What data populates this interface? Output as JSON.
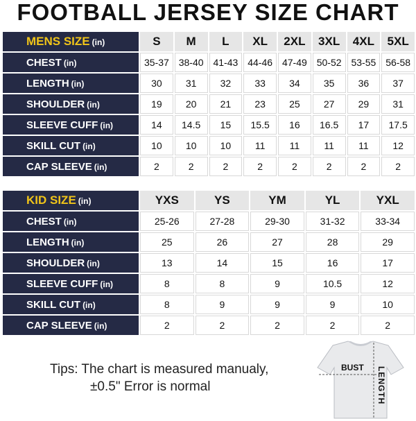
{
  "title": "FOOTBALL JERSEY SIZE CHART",
  "mens": {
    "label": "MENS SIZE",
    "unit": "(in)",
    "sizes": [
      "S",
      "M",
      "L",
      "XL",
      "2XL",
      "3XL",
      "4XL",
      "5XL"
    ],
    "rows": [
      {
        "label": "CHEST",
        "unit": "(in)",
        "values": [
          "35-37",
          "38-40",
          "41-43",
          "44-46",
          "47-49",
          "50-52",
          "53-55",
          "56-58"
        ]
      },
      {
        "label": "LENGTH",
        "unit": "(in)",
        "values": [
          "30",
          "31",
          "32",
          "33",
          "34",
          "35",
          "36",
          "37"
        ]
      },
      {
        "label": "SHOULDER",
        "unit": "(in)",
        "values": [
          "19",
          "20",
          "21",
          "23",
          "25",
          "27",
          "29",
          "31"
        ]
      },
      {
        "label": "SLEEVE CUFF",
        "unit": "(in)",
        "values": [
          "14",
          "14.5",
          "15",
          "15.5",
          "16",
          "16.5",
          "17",
          "17.5"
        ]
      },
      {
        "label": "SKILL CUT",
        "unit": "(in)",
        "values": [
          "10",
          "10",
          "10",
          "11",
          "11",
          "11",
          "11",
          "12"
        ]
      },
      {
        "label": "CAP SLEEVE",
        "unit": "(in)",
        "values": [
          "2",
          "2",
          "2",
          "2",
          "2",
          "2",
          "2",
          "2"
        ]
      }
    ]
  },
  "kids": {
    "label": "KID SIZE",
    "unit": "(in)",
    "sizes": [
      "YXS",
      "YS",
      "YM",
      "YL",
      "YXL"
    ],
    "rows": [
      {
        "label": "CHEST",
        "unit": "(in)",
        "values": [
          "25-26",
          "27-28",
          "29-30",
          "31-32",
          "33-34"
        ]
      },
      {
        "label": "LENGTH",
        "unit": "(in)",
        "values": [
          "25",
          "26",
          "27",
          "28",
          "29"
        ]
      },
      {
        "label": "SHOULDER",
        "unit": "(in)",
        "values": [
          "13",
          "14",
          "15",
          "16",
          "17"
        ]
      },
      {
        "label": "SLEEVE CUFF",
        "unit": "(in)",
        "values": [
          "8",
          "8",
          "9",
          "10.5",
          "12"
        ]
      },
      {
        "label": "SKILL CUT",
        "unit": "(in)",
        "values": [
          "8",
          "9",
          "9",
          "9",
          "10"
        ]
      },
      {
        "label": "CAP SLEEVE",
        "unit": "(in)",
        "values": [
          "2",
          "2",
          "2",
          "2",
          "2"
        ]
      }
    ]
  },
  "tips": {
    "line1": "Tips: The chart is measured manualy,",
    "line2": "±0.5\" Error is normal"
  },
  "diagram": {
    "bust_label": "BUST",
    "length_label": "LENGTH"
  }
}
